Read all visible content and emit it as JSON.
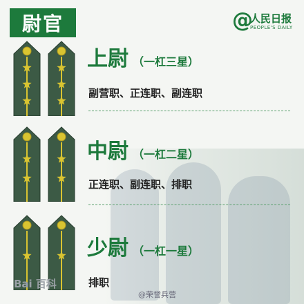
{
  "header": {
    "title": "尉官"
  },
  "logo": {
    "name": "人民日报",
    "subtitle": "PEOPLE'S DAILY",
    "at": "@"
  },
  "ranks": [
    {
      "name": "上尉",
      "desc": "（一杠三星）",
      "duties": "副营职、正连职、副连职",
      "stars": 3
    },
    {
      "name": "中尉",
      "desc": "（一杠二星）",
      "duties": "正连职、副连职、排职",
      "stars": 2
    },
    {
      "name": "少尉",
      "desc": "（一杠一星）",
      "duties": "排职",
      "stars": 1
    }
  ],
  "watermarks": {
    "left": "Bai 百科",
    "right": "@荣誉兵营"
  },
  "colors": {
    "green": "#1d7a3c",
    "board": "#3c5a45",
    "gold": "#d9c431"
  }
}
